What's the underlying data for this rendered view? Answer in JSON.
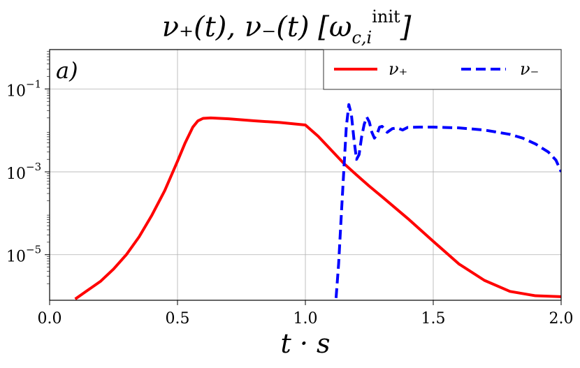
{
  "chart_data": {
    "type": "line",
    "title": "ν₊(t), ν₋(t) [ω_c,i^init]",
    "title_parts": {
      "main": "ν₊(t), ν₋(t) [ω",
      "sub": "c,i",
      "sup": "init",
      "end": "]"
    },
    "xlabel": "t · s",
    "ylabel": "",
    "panel_label": "a)",
    "xlim": [
      0.0,
      2.0
    ],
    "ylim_log10": [
      -6.1,
      -0.05
    ],
    "y_scale": "log",
    "grid": true,
    "legend_position": "top-right",
    "x_ticks": [
      0.0,
      0.5,
      1.0,
      1.5,
      2.0
    ],
    "x_tick_labels": [
      "0.0",
      "0.5",
      "1.0",
      "1.5",
      "2.0"
    ],
    "y_ticks_log10": [
      -1,
      -3,
      -5
    ],
    "y_tick_labels": [
      {
        "base": "10",
        "exp": "−1"
      },
      {
        "base": "10",
        "exp": "−3"
      },
      {
        "base": "10",
        "exp": "−5"
      }
    ],
    "series": [
      {
        "name": "ν₊",
        "color": "#ff0000",
        "style": "solid",
        "x": [
          0.1,
          0.15,
          0.2,
          0.25,
          0.3,
          0.35,
          0.4,
          0.45,
          0.5,
          0.53,
          0.56,
          0.58,
          0.6,
          0.63,
          0.7,
          0.8,
          0.9,
          1.0,
          1.05,
          1.1,
          1.15,
          1.2,
          1.25,
          1.3,
          1.4,
          1.5,
          1.6,
          1.7,
          1.8,
          1.9,
          2.0
        ],
        "y": [
          8.5e-07,
          1.4e-06,
          2.3e-06,
          4.5e-06,
          1e-05,
          2.7e-05,
          9e-05,
          0.00035,
          0.0018,
          0.005,
          0.012,
          0.017,
          0.0195,
          0.02,
          0.019,
          0.017,
          0.0155,
          0.0135,
          0.0072,
          0.0034,
          0.0016,
          0.00084,
          0.00045,
          0.00025,
          7.5e-05,
          2.1e-05,
          6e-06,
          2.4e-06,
          1.3e-06,
          1.02e-06,
          9.7e-07
        ]
      },
      {
        "name": "ν₋",
        "color": "#0000ff",
        "style": "dashed",
        "x": [
          1.12,
          1.13,
          1.14,
          1.15,
          1.16,
          1.17,
          1.18,
          1.19,
          1.2,
          1.21,
          1.22,
          1.23,
          1.24,
          1.25,
          1.26,
          1.27,
          1.28,
          1.29,
          1.3,
          1.32,
          1.34,
          1.36,
          1.38,
          1.4,
          1.45,
          1.5,
          1.6,
          1.7,
          1.8,
          1.85,
          1.9,
          1.95,
          1.98,
          2.0
        ],
        "y": [
          9e-07,
          6e-06,
          8e-05,
          0.001,
          0.012,
          0.042,
          0.024,
          0.006,
          0.002,
          0.0026,
          0.007,
          0.014,
          0.021,
          0.016,
          0.009,
          0.0065,
          0.008,
          0.012,
          0.0125,
          0.009,
          0.011,
          0.0115,
          0.0102,
          0.0118,
          0.012,
          0.012,
          0.0115,
          0.0102,
          0.008,
          0.0065,
          0.0047,
          0.003,
          0.0019,
          0.001
        ]
      }
    ]
  }
}
